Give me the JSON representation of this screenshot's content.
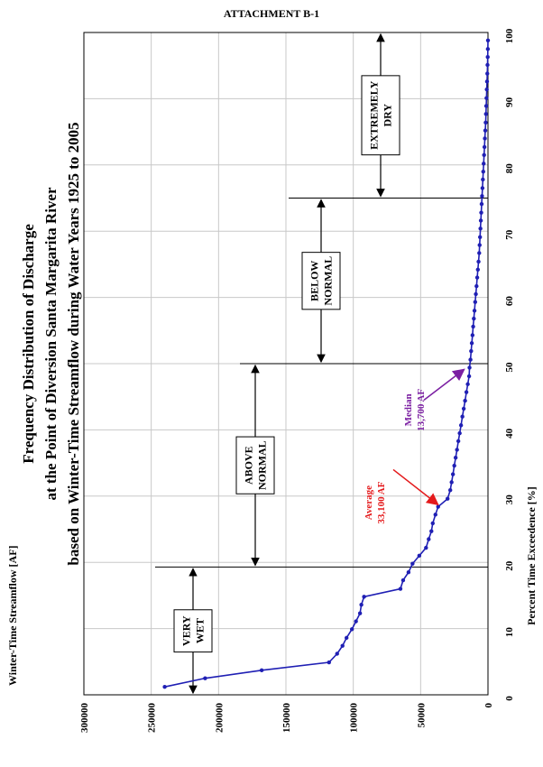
{
  "header": {
    "attachment": "ATTACHMENT B-1"
  },
  "chart_data": {
    "type": "line",
    "title_lines": [
      "Frequency Distribution of Discharge",
      "at the Point of Diversion Santa Margarita River",
      "based on Winter-Time Streamflow during Water Years 1925 to 2005"
    ],
    "xlabel": "Percent Time Exceedence [%]",
    "ylabel": "Winter-Time Streamflow [AF]",
    "xlim": [
      0,
      100
    ],
    "ylim": [
      0,
      300000
    ],
    "x_ticks": [
      0,
      10,
      20,
      30,
      40,
      50,
      60,
      70,
      80,
      90,
      100
    ],
    "y_ticks": [
      0,
      50000,
      100000,
      150000,
      200000,
      250000,
      300000
    ],
    "grid": true,
    "series": [
      {
        "color": "#1f1fb4",
        "x": [
          1.2,
          2.5,
          3.7,
          4.9,
          6.2,
          7.4,
          8.6,
          9.9,
          11.1,
          12.3,
          13.6,
          14.8,
          16.0,
          17.3,
          18.5,
          19.8,
          21.0,
          22.2,
          23.5,
          24.7,
          25.9,
          27.2,
          28.4,
          29.6,
          30.9,
          32.1,
          33.3,
          34.6,
          35.8,
          37.0,
          38.3,
          39.5,
          40.7,
          42.0,
          43.2,
          44.4,
          45.7,
          46.9,
          48.1,
          49.4,
          50.6,
          51.9,
          53.1,
          54.3,
          55.6,
          56.8,
          58.0,
          59.3,
          60.5,
          61.7,
          63.0,
          64.2,
          65.4,
          66.7,
          67.9,
          69.1,
          70.4,
          71.6,
          72.8,
          74.1,
          75.3,
          76.5,
          77.8,
          79.0,
          80.2,
          81.5,
          82.7,
          84.0,
          85.2,
          86.4,
          87.7,
          88.9,
          90.1,
          91.4,
          92.6,
          93.8,
          95.1,
          96.3,
          97.5,
          98.8
        ],
        "values": [
          240000,
          210000,
          168000,
          118000,
          112000,
          108000,
          105000,
          101000,
          98000,
          95000,
          94000,
          92000,
          65000,
          63000,
          59000,
          56000,
          51000,
          46000,
          44000,
          42000,
          41000,
          39000,
          37000,
          30000,
          28000,
          27000,
          26000,
          25000,
          24000,
          23000,
          22000,
          21000,
          20000,
          19000,
          18000,
          17000,
          16000,
          15000,
          14000,
          13700,
          13000,
          12500,
          12000,
          11500,
          11000,
          10500,
          10000,
          9500,
          9000,
          8500,
          8000,
          7500,
          7000,
          6500,
          6200,
          5900,
          5600,
          5300,
          5000,
          4700,
          4400,
          4100,
          3800,
          3500,
          3200,
          2900,
          2600,
          2300,
          2000,
          1700,
          1500,
          1300,
          1100,
          900,
          700,
          500,
          350,
          200,
          100,
          0
        ]
      }
    ],
    "zones": [
      {
        "label": "VERY WET",
        "label_lines": [
          "VERY",
          "WET"
        ],
        "from": 0,
        "to": 19.3
      },
      {
        "label": "ABOVE NORMAL",
        "label_lines": [
          "ABOVE",
          "NORMAL"
        ],
        "from": 19.3,
        "to": 50
      },
      {
        "label": "BELOW NORMAL",
        "label_lines": [
          "BELOW",
          "NORMAL"
        ],
        "from": 50,
        "to": 75
      },
      {
        "label": "EXTREMELY DRY",
        "label_lines": [
          "EXTREMELY",
          "DRY"
        ],
        "from": 75,
        "to": 100
      }
    ],
    "annotations": [
      {
        "label_lines": [
          "Average",
          "33,100 AF"
        ],
        "color": "#e41a1c",
        "x": 29,
        "y": 33100
      },
      {
        "label_lines": [
          "Median",
          "13,700 AF"
        ],
        "color": "#7b1fa2",
        "x": 49.4,
        "y": 13700
      }
    ]
  }
}
